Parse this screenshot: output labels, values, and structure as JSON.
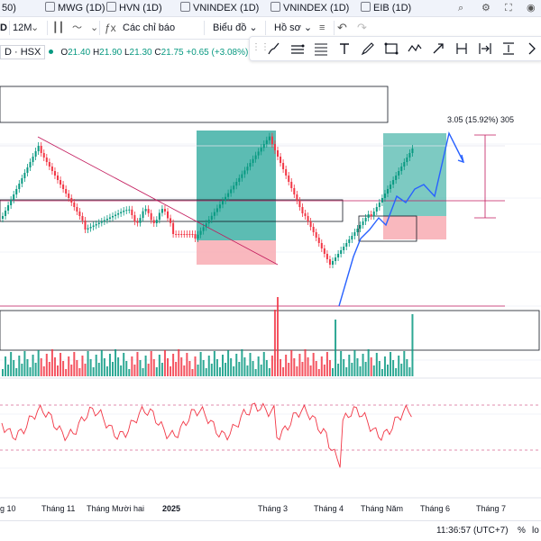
{
  "tabs": [
    {
      "label": "50)",
      "icon": "chart-tab-icon"
    },
    {
      "label": "MWG (1D)",
      "icon": "chart-tab-icon"
    },
    {
      "label": "HVN (1D)",
      "icon": "chart-tab-icon"
    },
    {
      "label": "VNINDEX (1D)",
      "icon": "chart-tab-icon"
    },
    {
      "label": "VNINDEX (1D)",
      "icon": "chart-tab-icon"
    },
    {
      "label": "EIB (1D)",
      "icon": "chart-tab-icon"
    }
  ],
  "toolbar": {
    "symbol_partial": "D",
    "interval": "12M",
    "indicators_label": "Các chỉ báo",
    "chart_label": "Biểu đồ",
    "profile_label": "Hồ sơ"
  },
  "legend": {
    "symbol": "D · HSX",
    "o": "21.40",
    "h": "21.90",
    "l": "21.30",
    "c": "21.75",
    "change": "+0.65 (+3.08%)"
  },
  "measure_label": "3.05 (15.92%) 305",
  "xaxis_labels": [
    "g 10",
    "Tháng 11",
    "Tháng Mười hai",
    "2025",
    "Tháng 3",
    "Tháng 4",
    "Tháng Năm",
    "Tháng 6",
    "Tháng 7"
  ],
  "status": {
    "time": "11:36:57 (UTC+7)",
    "percent": "%",
    "log": "lo"
  },
  "colors": {
    "up": "#089981",
    "down": "#f23645",
    "rsi": "#f23645",
    "forecast": "#2962ff",
    "profit_zone": "#26a69a",
    "loss_zone": "#f7a6ae"
  },
  "drawing_tools": [
    "brush-icon",
    "parallel-channel-icon",
    "fib-icon",
    "text-icon",
    "pen-icon",
    "rectangle-icon",
    "path-icon",
    "arrow-up-icon",
    "long-position-icon",
    "date-range-icon",
    "price-range-icon",
    "more-icon"
  ]
}
